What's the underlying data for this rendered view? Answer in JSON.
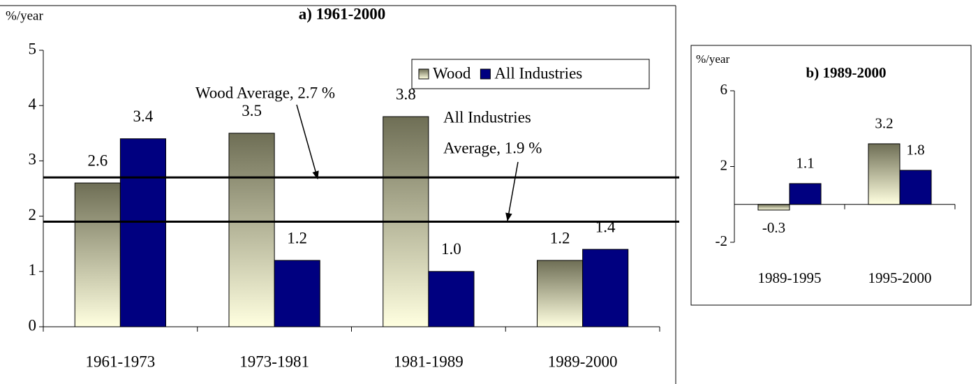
{
  "chart_data": [
    {
      "type": "bar",
      "title": "a) 1961-2000",
      "y_label": "%/year",
      "categories": [
        "1961-1973",
        "1973-1981",
        "1981-1989",
        "1989-2000"
      ],
      "series": [
        {
          "name": "Wood",
          "color": "#ffffe0",
          "values": [
            2.6,
            3.5,
            3.8,
            1.2
          ],
          "value_labels": [
            "2.6",
            "3.5",
            "3.8",
            "1.2"
          ]
        },
        {
          "name": "All Industries",
          "color": "#000080",
          "values": [
            3.4,
            1.2,
            1.0,
            1.4
          ],
          "value_labels": [
            "3.4",
            "1.2",
            "1.0",
            "1.4"
          ]
        }
      ],
      "ylim": [
        0,
        5
      ],
      "yticks": [
        0,
        1,
        2,
        3,
        4,
        5
      ],
      "legend": "top-right",
      "reference_lines": [
        {
          "label_lines": [
            "Wood Average, 2.7 %"
          ],
          "value": 2.7
        },
        {
          "label_lines": [
            "All Industries",
            "Average, 1.9 %"
          ],
          "value": 1.9
        }
      ]
    },
    {
      "type": "bar",
      "title": "b) 1989-2000",
      "y_label": "%/year",
      "categories": [
        "1989-1995",
        "1995-2000"
      ],
      "series": [
        {
          "name": "Wood",
          "color": "#ffffe0",
          "values": [
            -0.3,
            3.2
          ],
          "value_labels": [
            "-0.3",
            "3.2"
          ]
        },
        {
          "name": "All Industries",
          "color": "#000080",
          "values": [
            1.1,
            1.8
          ],
          "value_labels": [
            "1.1",
            "1.8"
          ]
        }
      ],
      "ylim": [
        -2,
        6
      ],
      "yticks": [
        -2,
        2,
        6
      ]
    }
  ]
}
